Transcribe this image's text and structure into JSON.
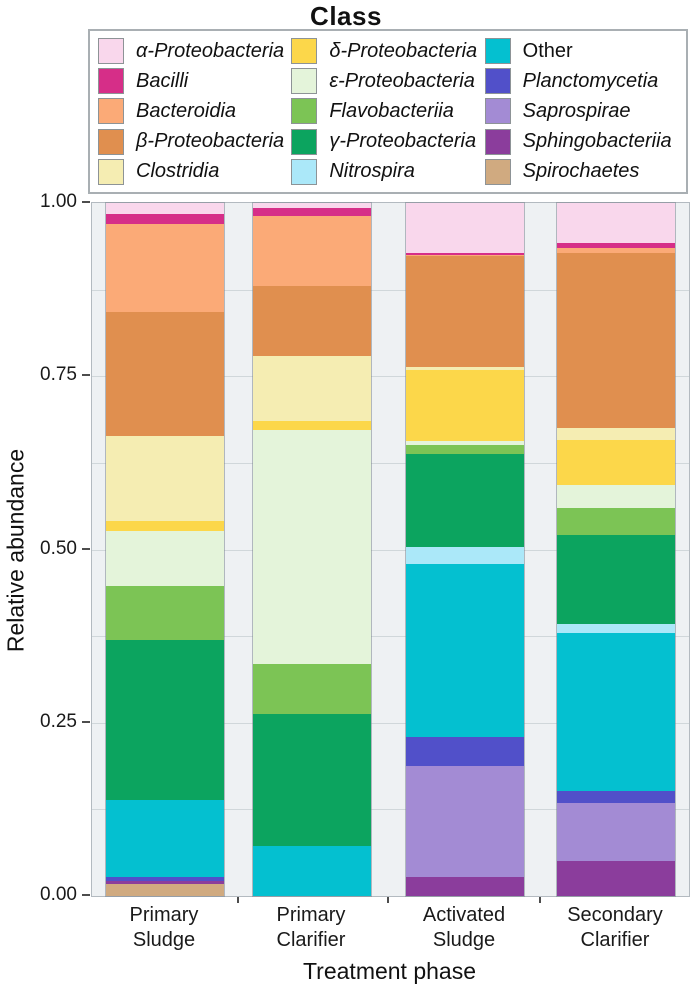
{
  "chart_data": {
    "type": "stacked-bar",
    "legend_title": "Class",
    "xlabel": "Treatment phase",
    "ylabel": "Relative abundance",
    "ylim": [
      0,
      1
    ],
    "y_ticks": [
      "0.00",
      "0.25",
      "0.50",
      "0.75",
      "1.00"
    ],
    "grid": "horizontal lines every 0.125, light gray panel",
    "legend_position": "top, 3 columns, boxed, titled",
    "categories": [
      "Primary\nSludge",
      "Primary\nClarifier",
      "Activated\nSludge",
      "Secondary\nClarifier"
    ],
    "classes": [
      {
        "name": "α-Proteobacteria",
        "color": "#f9d7ec",
        "italic": true,
        "values": [
          0.016,
          0.007,
          0.072,
          0.058
        ]
      },
      {
        "name": "Bacilli",
        "color": "#d62e88",
        "italic": true,
        "values": [
          0.015,
          0.012,
          0.003,
          0.007
        ]
      },
      {
        "name": "Bacteroidia",
        "color": "#fbaa77",
        "italic": true,
        "values": [
          0.127,
          0.101,
          0.002,
          0.007
        ]
      },
      {
        "name": "β-Proteobacteria",
        "color": "#e08f4f",
        "italic": true,
        "values": [
          0.178,
          0.101,
          0.16,
          0.253
        ]
      },
      {
        "name": "Clostridia",
        "color": "#f5edb2",
        "italic": true,
        "values": [
          0.123,
          0.094,
          0.004,
          0.017
        ]
      },
      {
        "name": "δ-Proteobacteria",
        "color": "#fcd74a",
        "italic": true,
        "values": [
          0.014,
          0.013,
          0.102,
          0.065
        ]
      },
      {
        "name": "ε-Proteobacteria",
        "color": "#e4f4da",
        "italic": true,
        "values": [
          0.08,
          0.337,
          0.006,
          0.033
        ]
      },
      {
        "name": "Flavobacteriia",
        "color": "#7cc455",
        "italic": true,
        "values": [
          0.078,
          0.072,
          0.013,
          0.039
        ]
      },
      {
        "name": "γ-Proteobacteria",
        "color": "#0ca45f",
        "italic": true,
        "values": [
          0.23,
          0.191,
          0.134,
          0.128
        ]
      },
      {
        "name": "Nitrospira",
        "color": "#abe8f9",
        "italic": true,
        "values": [
          0.0,
          0.0,
          0.025,
          0.014
        ]
      },
      {
        "name": "Other",
        "color": "#04c0d0",
        "italic": false,
        "values": [
          0.112,
          0.072,
          0.25,
          0.228
        ]
      },
      {
        "name": "Planctomycetia",
        "color": "#5150c9",
        "italic": true,
        "values": [
          0.005,
          0.0,
          0.041,
          0.017
        ]
      },
      {
        "name": "Saprospirae",
        "color": "#a38bd4",
        "italic": true,
        "values": [
          0.0,
          0.0,
          0.16,
          0.084
        ]
      },
      {
        "name": "Sphingobacteriia",
        "color": "#8b3d9c",
        "italic": true,
        "values": [
          0.004,
          0.0,
          0.028,
          0.05
        ]
      },
      {
        "name": "Spirochaetes",
        "color": "#d0aa80",
        "italic": true,
        "values": [
          0.018,
          0.0,
          0.0,
          0.0
        ]
      }
    ]
  }
}
